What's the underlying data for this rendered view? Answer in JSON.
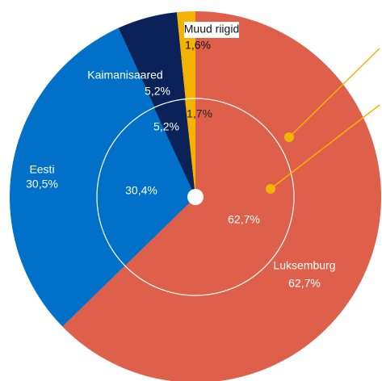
{
  "chart_data": [
    {
      "type": "pie",
      "categories": [
        "Luksemburg",
        "Eesti",
        "Kaimanisaared",
        "Muud riigid"
      ],
      "values": [
        62.7,
        30.5,
        5.2,
        1.6
      ],
      "value_labels": [
        "62,7%",
        "30,5%",
        "5,2%",
        "1,6%"
      ],
      "colors": [
        "#de604b",
        "#0070c8",
        "#0b2258",
        "#f5b301"
      ]
    },
    {
      "type": "pie",
      "values": [
        62.7,
        30.4,
        5.2,
        1.7
      ],
      "value_labels": [
        "62,7%",
        "30,4%",
        "5,2%",
        "1,7%"
      ],
      "colors": [
        "#de604b",
        "#0070c8",
        "#0b2258",
        "#f5b301"
      ]
    }
  ]
}
